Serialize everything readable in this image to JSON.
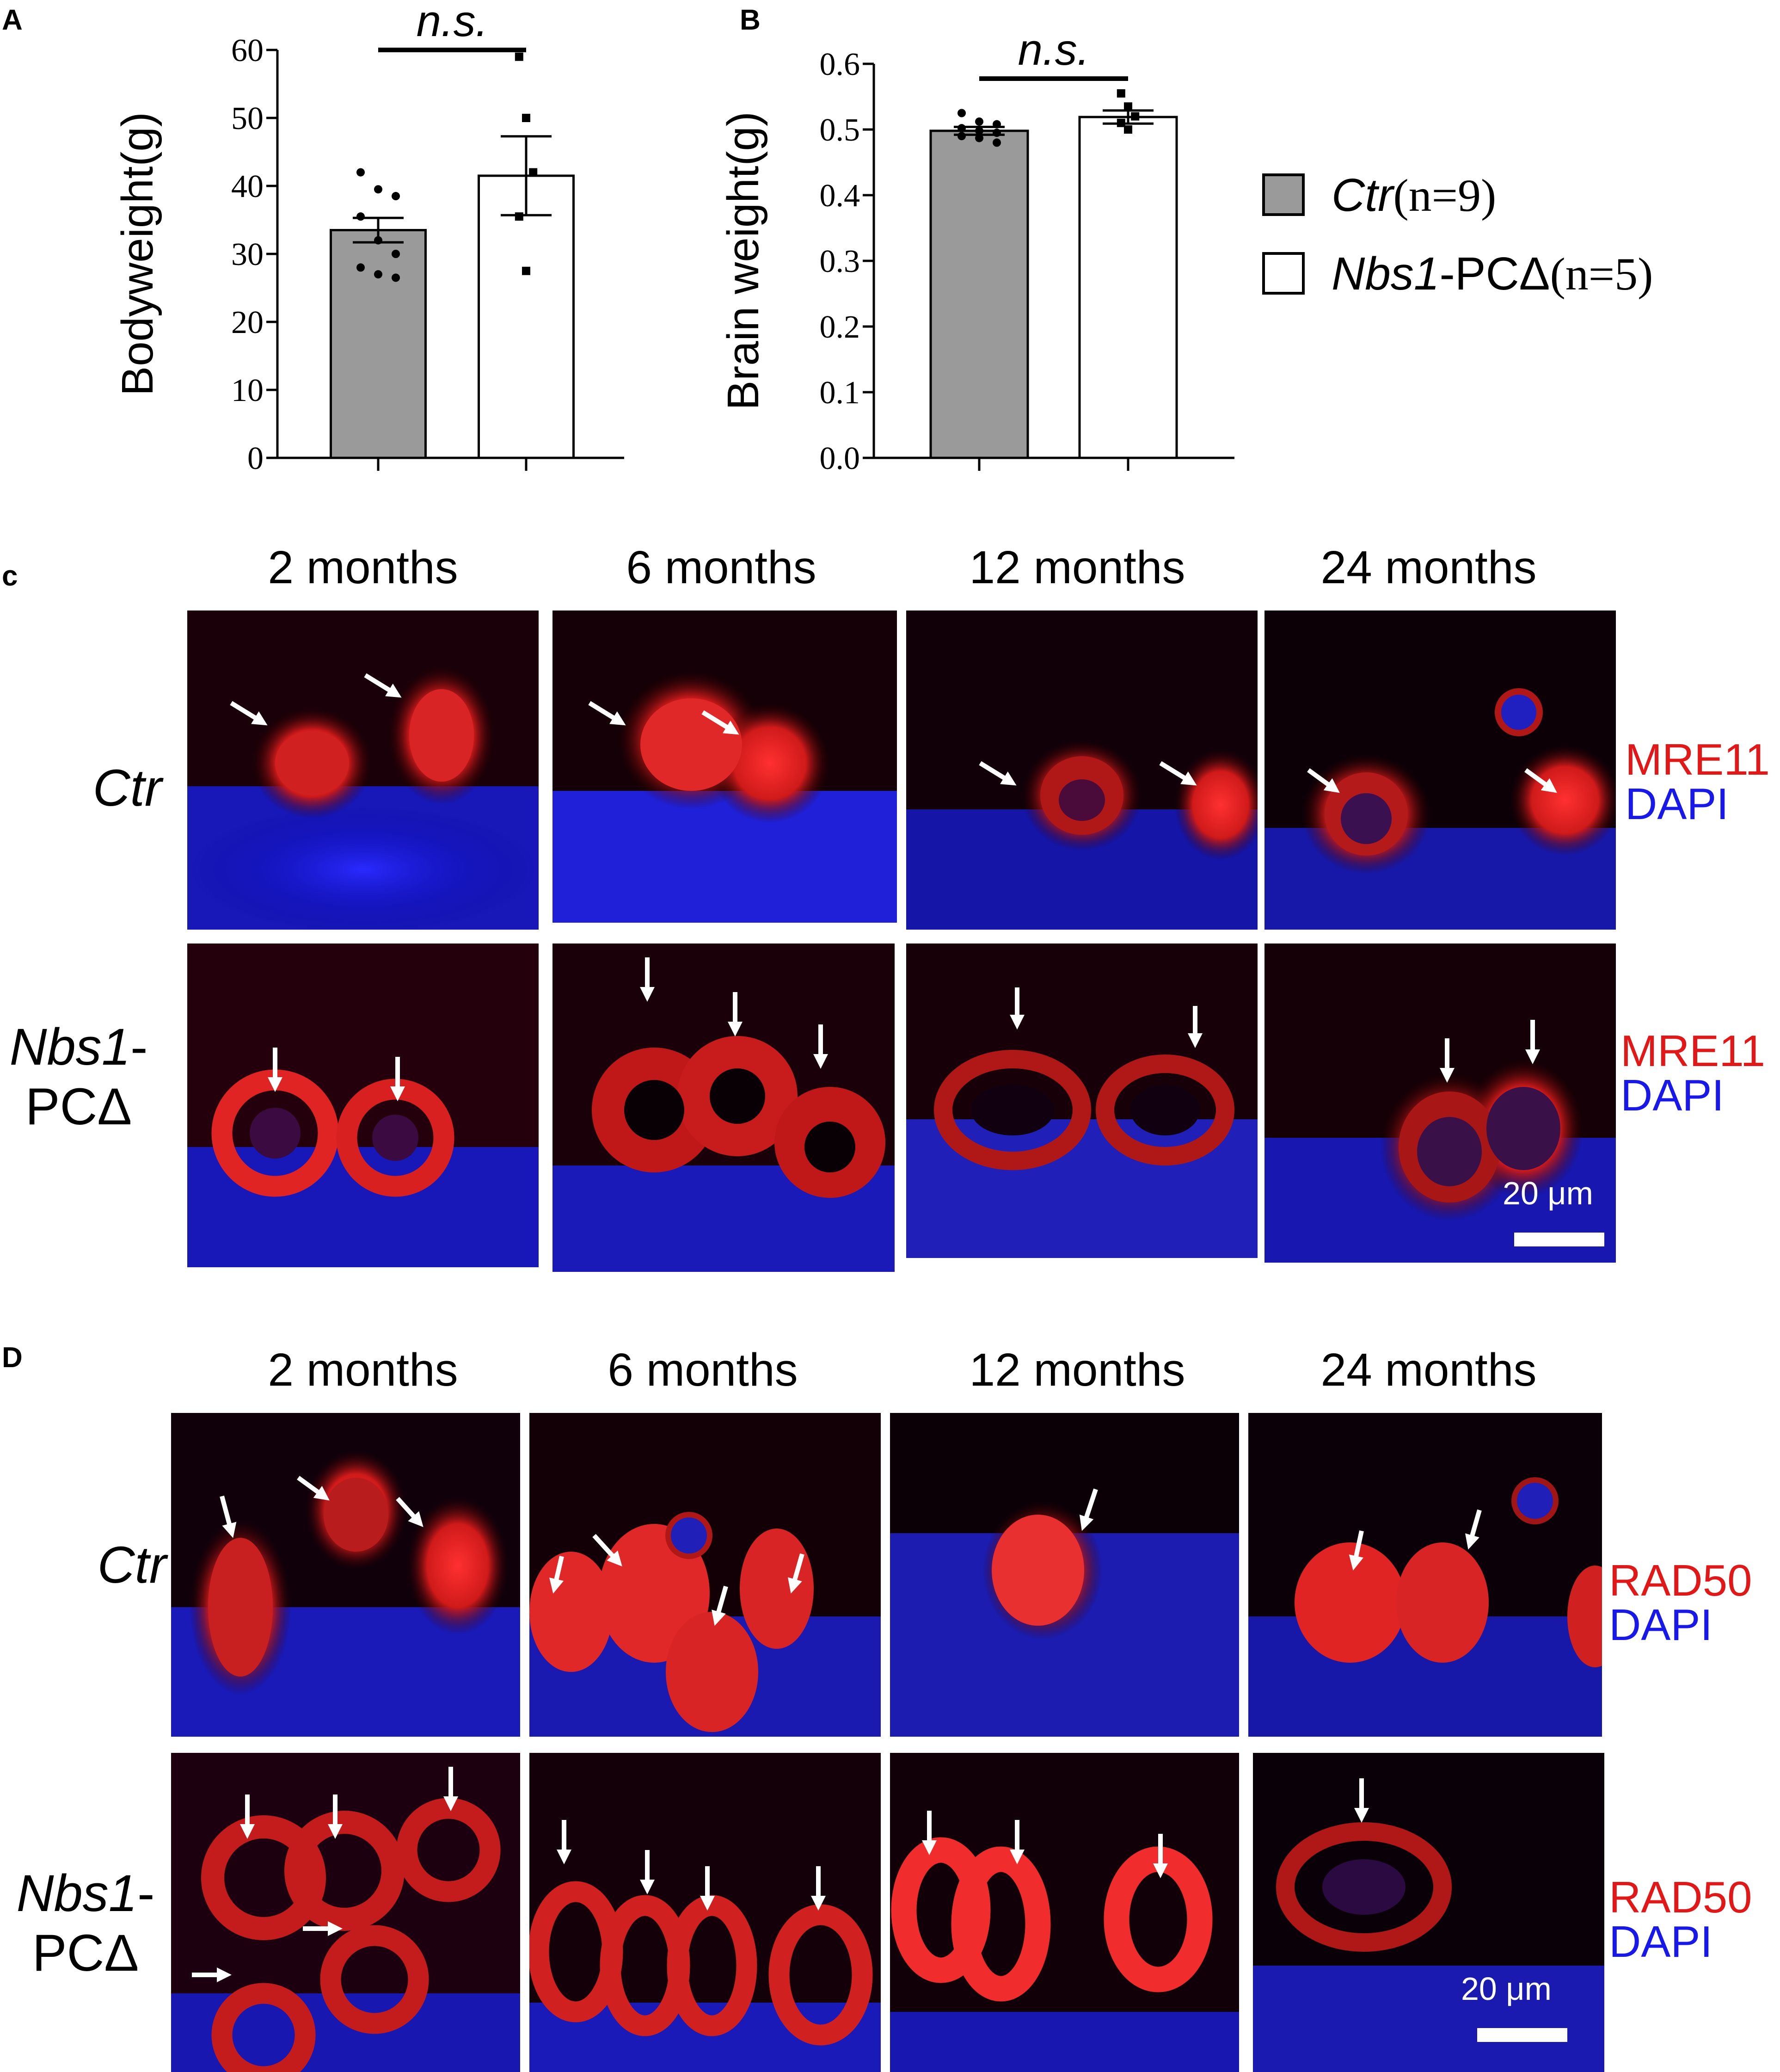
{
  "panel_labels": {
    "a": "A",
    "b": "B",
    "c": "c",
    "d": "D"
  },
  "legend": {
    "ctr": {
      "name": "Ctr",
      "n": "(n=9)",
      "color": "#9a9a9a"
    },
    "nbs": {
      "name": "Nbs1",
      "suffix": "-PCΔ",
      "n": "(n=5)",
      "color": "#ffffff"
    }
  },
  "chart_data": [
    {
      "type": "bar",
      "ylabel": "Bodyweight(g)",
      "yticks": [
        "0",
        "10",
        "20",
        "30",
        "40",
        "50",
        "60"
      ],
      "ylim": [
        0,
        60
      ],
      "significance": "n.s.",
      "categories": [
        "Ctr",
        "Nbs1-PCΔ"
      ],
      "values": [
        33.5,
        41.5
      ],
      "sem": [
        1.8,
        5.8
      ],
      "points": [
        [
          42,
          39.5,
          38.5,
          35.5,
          32,
          30,
          28,
          27,
          26.5
        ],
        [
          59,
          50,
          42,
          35.5,
          27.5
        ]
      ]
    },
    {
      "type": "bar",
      "ylabel": "Brain weight(g)",
      "yticks": [
        "0.0",
        "0.1",
        "0.2",
        "0.3",
        "0.4",
        "0.5",
        "0.6"
      ],
      "ylim": [
        0,
        0.6
      ],
      "significance": "n.s.",
      "categories": [
        "Ctr",
        "Nbs1-PCΔ"
      ],
      "values": [
        0.498,
        0.519
      ],
      "sem": [
        0.006,
        0.01
      ],
      "points": [
        [
          0.525,
          0.512,
          0.508,
          0.502,
          0.498,
          0.495,
          0.49,
          0.487,
          0.48
        ],
        [
          0.555,
          0.535,
          0.52,
          0.51,
          0.5
        ]
      ]
    }
  ],
  "panel_c": {
    "columns": [
      "2 months",
      "6 months",
      "12 months",
      "24 months"
    ],
    "row1": {
      "label": "Ctr"
    },
    "row2": {
      "label_italic": "Nbs1",
      "label_tail": "-",
      "label_line2": "PCΔ"
    },
    "stain_red": "MRE11",
    "stain_blue": "DAPI",
    "scale": "20  μm"
  },
  "panel_d": {
    "columns": [
      "2 months",
      "6 months",
      "12 months",
      "24 months"
    ],
    "row1": {
      "label": "Ctr"
    },
    "row2": {
      "label_italic": "Nbs1",
      "label_tail": "-",
      "label_line2": "PCΔ"
    },
    "stain_red": "RAD50",
    "stain_blue": "DAPI",
    "scale": "20  μm"
  }
}
